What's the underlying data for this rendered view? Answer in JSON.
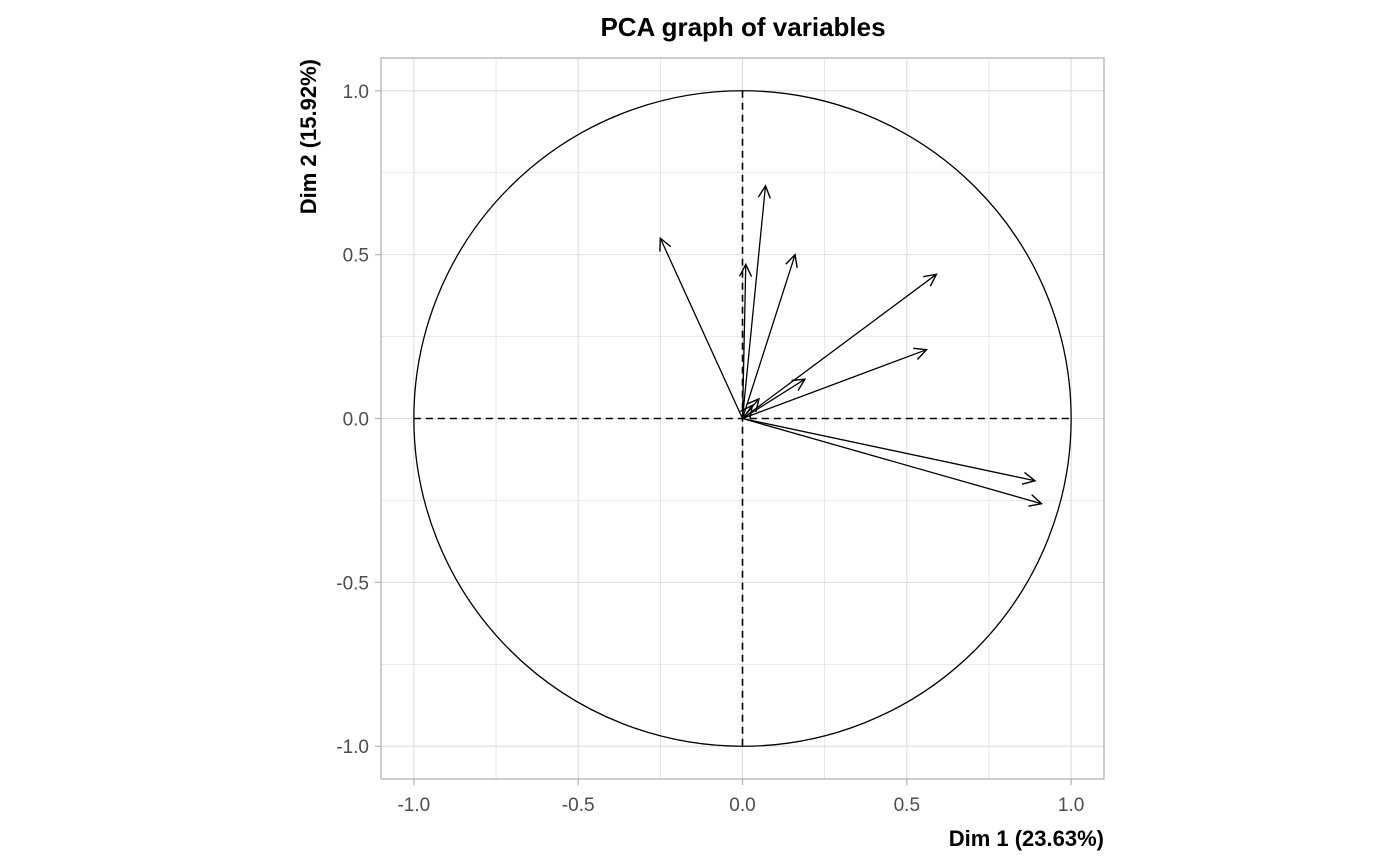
{
  "chart_data": {
    "type": "scatter",
    "title": "PCA graph of variables",
    "xlabel": "Dim 1 (23.63%)",
    "ylabel": "Dim 2 (15.92%)",
    "xlim": [
      -1.1,
      1.1
    ],
    "ylim": [
      -1.1,
      1.1
    ],
    "x_ticks": [
      -1.0,
      -0.5,
      0.0,
      0.5,
      1.0
    ],
    "y_ticks": [
      -1.0,
      -0.5,
      0.0,
      0.5,
      1.0
    ],
    "x_tick_labels": [
      "-1.0",
      "-0.5",
      "0.0",
      "0.5",
      "1.0"
    ],
    "y_tick_labels": [
      "-1.0",
      "-0.5",
      "0.0",
      "0.5",
      "1.0"
    ],
    "grid": true,
    "correlation_circle_radius": 1.0,
    "vectors": [
      {
        "x": -0.25,
        "y": 0.55
      },
      {
        "x": 0.01,
        "y": 0.47
      },
      {
        "x": 0.07,
        "y": 0.71
      },
      {
        "x": 0.16,
        "y": 0.5
      },
      {
        "x": 0.59,
        "y": 0.44
      },
      {
        "x": 0.56,
        "y": 0.21
      },
      {
        "x": 0.19,
        "y": 0.12
      },
      {
        "x": 0.05,
        "y": 0.06
      },
      {
        "x": 0.03,
        "y": 0.04
      },
      {
        "x": 0.89,
        "y": -0.19
      },
      {
        "x": 0.91,
        "y": -0.26
      }
    ],
    "colors": {
      "background": "#ffffff",
      "grid": "#dedede",
      "panel_border": "#b3b3b3",
      "lines": "#000000",
      "tick_label": "#4d4d4d"
    }
  }
}
